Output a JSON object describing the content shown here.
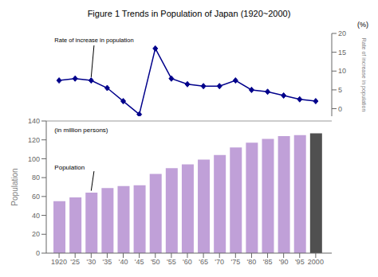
{
  "chart_data": [
    {
      "type": "line",
      "title": "Figure 1   Trends in Population of Japan (1920~2000)",
      "x": [
        1920,
        1925,
        1930,
        1935,
        1940,
        1945,
        1950,
        1955,
        1960,
        1965,
        1970,
        1975,
        1980,
        1985,
        1990,
        1995,
        2000
      ],
      "values": [
        7.5,
        8.0,
        7.5,
        5.5,
        2.0,
        -1.5,
        16.0,
        8.0,
        6.5,
        6.0,
        6.0,
        7.5,
        5.0,
        4.5,
        3.5,
        2.5,
        2.0
      ],
      "color": "#00008B",
      "marker": "diamond",
      "xlim": [
        1916,
        2005
      ],
      "ylim": [
        -2,
        20
      ],
      "yticks": [
        0,
        5,
        10,
        15,
        20
      ],
      "ylabel": "Rate of increase in population",
      "annotations": [
        "Rate of increase in population",
        "(%)"
      ],
      "tick_labels": "y"
    },
    {
      "type": "bar",
      "x": [
        1920,
        1925,
        1930,
        1935,
        1940,
        1945,
        1950,
        1955,
        1960,
        1965,
        1970,
        1975,
        1980,
        1985,
        1990,
        1995,
        2000
      ],
      "values": [
        55,
        59,
        64,
        69,
        71,
        72,
        84,
        90,
        94,
        99,
        104,
        112,
        117,
        121,
        124,
        125,
        127
      ],
      "colors": [
        "#c0a0d8",
        "#c0a0d8",
        "#c0a0d8",
        "#c0a0d8",
        "#c0a0d8",
        "#c0a0d8",
        "#c0a0d8",
        "#c0a0d8",
        "#c0a0d8",
        "#c0a0d8",
        "#c0a0d8",
        "#c0a0d8",
        "#c0a0d8",
        "#c0a0d8",
        "#c0a0d8",
        "#c0a0d8",
        "#505050"
      ],
      "xlim": [
        1916,
        2005
      ],
      "xticks": [
        1920,
        {
          "value": 1925,
          "label": "'25"
        },
        {
          "value": 1930,
          "label": "'30"
        },
        {
          "value": 1935,
          "label": "'35"
        },
        {
          "value": 1940,
          "label": "'40"
        },
        {
          "value": 1945,
          "label": "'45"
        },
        {
          "value": 1950,
          "label": "'50"
        },
        {
          "value": 1955,
          "label": "'55"
        },
        {
          "value": 1960,
          "label": "'60"
        },
        {
          "value": 1965,
          "label": "'65"
        },
        {
          "value": 1970,
          "label": "'70"
        },
        {
          "value": 1975,
          "label": "'75"
        },
        {
          "value": 1980,
          "label": "'80"
        },
        {
          "value": 1985,
          "label": "'85"
        },
        {
          "value": 1990,
          "label": "'90"
        },
        {
          "value": 1995,
          "label": "'95"
        },
        2000
      ],
      "ylim": [
        0,
        140
      ],
      "yticks": [
        0,
        20,
        40,
        60,
        80,
        100,
        120,
        140
      ],
      "ylabel": "Population",
      "annotations": [
        "Population",
        "(in million persons)"
      ]
    }
  ]
}
